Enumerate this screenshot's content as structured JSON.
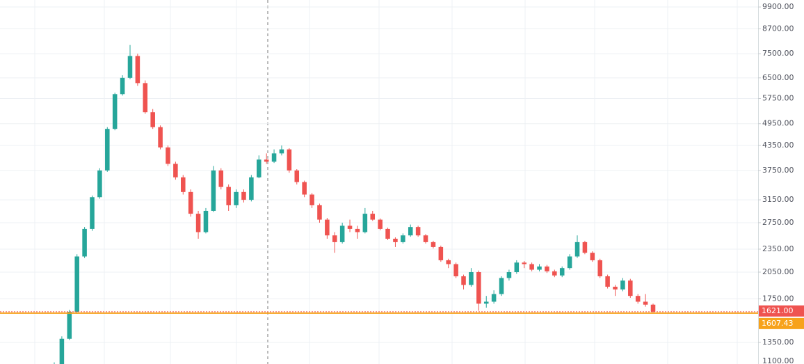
{
  "chart_data": {
    "type": "candlestick",
    "log_scale": true,
    "grid": true,
    "up_color": "#26a69a",
    "down_color": "#ef5350",
    "ylim": [
      1188,
      10320
    ],
    "yticks": [
      {
        "value": 9900,
        "label": "9900.00"
      },
      {
        "value": 8700,
        "label": "8700.00"
      },
      {
        "value": 7500,
        "label": "7500.00"
      },
      {
        "value": 6500,
        "label": "6500.00"
      },
      {
        "value": 5750,
        "label": "5750.00"
      },
      {
        "value": 4950,
        "label": "4950.00"
      },
      {
        "value": 4350,
        "label": "4350.00"
      },
      {
        "value": 3750,
        "label": "3750.00"
      },
      {
        "value": 3150,
        "label": "3150.00"
      },
      {
        "value": 2750,
        "label": "2750.00"
      },
      {
        "value": 2350,
        "label": "2350.00"
      },
      {
        "value": 2050,
        "label": "2050.00"
      },
      {
        "value": 1750,
        "label": "1750.00"
      },
      {
        "value": 1350,
        "label": "1350.00"
      },
      {
        "value": 1100,
        "label": "1100.00"
      }
    ],
    "price_lines": [
      {
        "value": 1621,
        "label": "1621.00",
        "color": "#ef5350"
      },
      {
        "value": 1607.43,
        "label": "1607.43",
        "color": "#f7a21b"
      }
    ],
    "ohlc": [
      [
        1150,
        1200,
        1140,
        1180
      ],
      [
        1180,
        1400,
        1170,
        1380
      ],
      [
        1380,
        1640,
        1370,
        1620
      ],
      [
        1620,
        2280,
        1600,
        2250
      ],
      [
        2250,
        2680,
        2230,
        2650
      ],
      [
        2650,
        3230,
        2620,
        3200
      ],
      [
        3200,
        3800,
        3170,
        3750
      ],
      [
        3750,
        4850,
        3720,
        4800
      ],
      [
        4800,
        5950,
        4760,
        5900
      ],
      [
        5900,
        6600,
        5850,
        6500
      ],
      [
        6500,
        7900,
        6450,
        7400
      ],
      [
        7400,
        7500,
        6200,
        6300
      ],
      [
        6300,
        6400,
        5250,
        5300
      ],
      [
        5300,
        5400,
        4800,
        4850
      ],
      [
        4850,
        4900,
        4250,
        4300
      ],
      [
        4300,
        4350,
        3850,
        3900
      ],
      [
        3900,
        3950,
        3550,
        3600
      ],
      [
        3600,
        3650,
        3250,
        3300
      ],
      [
        3300,
        3350,
        2850,
        2900
      ],
      [
        2900,
        2950,
        2500,
        2600
      ],
      [
        2600,
        3000,
        2580,
        2950
      ],
      [
        2950,
        3850,
        2930,
        3750
      ],
      [
        3750,
        3800,
        3350,
        3400
      ],
      [
        3400,
        3450,
        2950,
        3050
      ],
      [
        3050,
        3350,
        3000,
        3300
      ],
      [
        3300,
        3350,
        3100,
        3150
      ],
      [
        3150,
        3650,
        3120,
        3600
      ],
      [
        3600,
        4100,
        3580,
        4000
      ],
      [
        4000,
        4150,
        3900,
        3950
      ],
      [
        3950,
        4250,
        3920,
        4150
      ],
      [
        4150,
        4350,
        4100,
        4250
      ],
      [
        4250,
        4280,
        3700,
        3750
      ],
      [
        3750,
        3780,
        3450,
        3500
      ],
      [
        3500,
        3530,
        3200,
        3250
      ],
      [
        3250,
        3280,
        3000,
        3050
      ],
      [
        3050,
        3080,
        2750,
        2800
      ],
      [
        2800,
        2830,
        2500,
        2550
      ],
      [
        2550,
        2600,
        2300,
        2450
      ],
      [
        2450,
        2750,
        2430,
        2700
      ],
      [
        2700,
        2800,
        2600,
        2650
      ],
      [
        2650,
        2700,
        2500,
        2600
      ],
      [
        2600,
        3000,
        2580,
        2900
      ],
      [
        2900,
        2950,
        2780,
        2800
      ],
      [
        2800,
        2820,
        2630,
        2650
      ],
      [
        2650,
        2670,
        2480,
        2500
      ],
      [
        2500,
        2520,
        2380,
        2450
      ],
      [
        2450,
        2580,
        2430,
        2550
      ],
      [
        2550,
        2720,
        2530,
        2680
      ],
      [
        2680,
        2700,
        2530,
        2550
      ],
      [
        2550,
        2570,
        2430,
        2450
      ],
      [
        2450,
        2470,
        2360,
        2380
      ],
      [
        2380,
        2400,
        2180,
        2200
      ],
      [
        2200,
        2220,
        2100,
        2150
      ],
      [
        2150,
        2170,
        1980,
        2000
      ],
      [
        2000,
        2020,
        1850,
        1900
      ],
      [
        1900,
        2100,
        1880,
        2050
      ],
      [
        2050,
        2070,
        1630,
        1700
      ],
      [
        1700,
        1780,
        1660,
        1720
      ],
      [
        1720,
        1840,
        1700,
        1800
      ],
      [
        1800,
        2000,
        1780,
        1980
      ],
      [
        1980,
        2080,
        1950,
        2050
      ],
      [
        2050,
        2200,
        2030,
        2170
      ],
      [
        2170,
        2190,
        2100,
        2150
      ],
      [
        2150,
        2170,
        2060,
        2080
      ],
      [
        2080,
        2150,
        2060,
        2120
      ],
      [
        2120,
        2140,
        2040,
        2060
      ],
      [
        2060,
        2080,
        1990,
        2010
      ],
      [
        2010,
        2120,
        1990,
        2100
      ],
      [
        2100,
        2280,
        2080,
        2250
      ],
      [
        2250,
        2550,
        2230,
        2450
      ],
      [
        2450,
        2470,
        2280,
        2300
      ],
      [
        2300,
        2320,
        2180,
        2200
      ],
      [
        2200,
        2220,
        1980,
        2000
      ],
      [
        2000,
        2020,
        1860,
        1880
      ],
      [
        1880,
        1900,
        1780,
        1850
      ],
      [
        1850,
        1980,
        1830,
        1950
      ],
      [
        1950,
        1970,
        1760,
        1780
      ],
      [
        1780,
        1800,
        1700,
        1720
      ],
      [
        1720,
        1800,
        1670,
        1690
      ],
      [
        1690,
        1700,
        1610,
        1621
      ]
    ]
  }
}
